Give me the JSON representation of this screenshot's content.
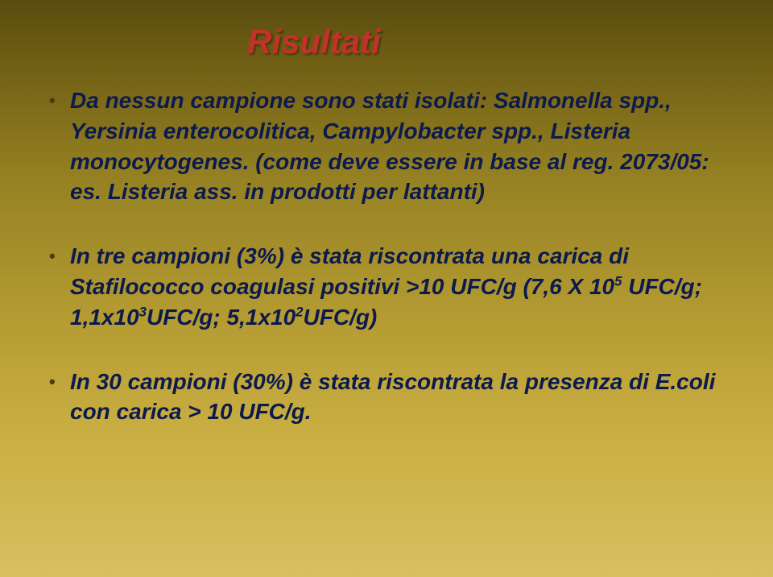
{
  "slide": {
    "title": "Risultati",
    "title_color": "#c2312a",
    "body_color": "#0c1a4d",
    "bullet_color": "#473c0b",
    "background_top": "#5a4c10",
    "background_bottom": "#d9bf60",
    "bullets": [
      {
        "parts": [
          {
            "t": "Da nessun campione sono stati isolati: Salmonella spp., Yersinia enterocolitica, Campylobacter spp., Listeria monocytogenes. (come deve essere in base al reg. 2073/05: es. Listeria ass. in prodotti per lattanti)"
          }
        ]
      },
      {
        "parts": [
          {
            "t": "In tre campioni (3%) è stata riscontrata una carica di Stafilococco coagulasi positivi >10 UFC/g  (7,6 X 10"
          },
          {
            "t": "5",
            "sup": true
          },
          {
            "t": " UFC/g; 1,1x10"
          },
          {
            "t": "3",
            "sup": true
          },
          {
            "t": "UFC/g; 5,1x10"
          },
          {
            "t": "2",
            "sup": true
          },
          {
            "t": "UFC/g)"
          }
        ]
      },
      {
        "parts": [
          {
            "t": "In 30 campioni (30%) è stata riscontrata la presenza di E.coli con carica > 10 UFC/g."
          }
        ]
      }
    ]
  }
}
